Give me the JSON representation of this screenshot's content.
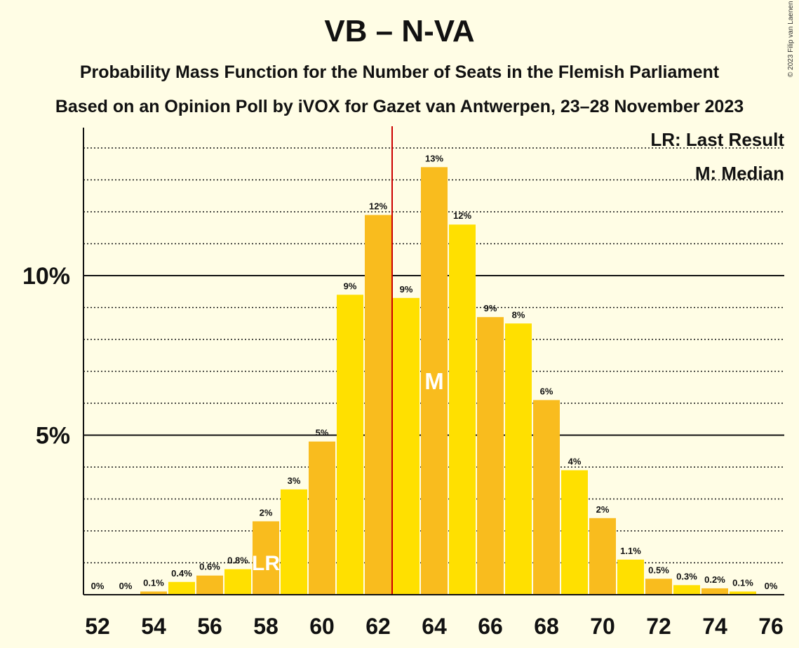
{
  "title": "VB – N-VA",
  "subtitle1": "Probability Mass Function for the Number of Seats in the Flemish Parliament",
  "subtitle2": "Based on an Opinion Poll by iVOX for Gazet van Antwerpen, 23–28 November 2023",
  "copyright": "© 2023 Filip van Laenen",
  "legend": {
    "last_result": "LR: Last Result",
    "median": "M: Median"
  },
  "colors": {
    "background": "#FFFDE5",
    "bar_a": "#FFE000",
    "bar_b": "#F9BC1E",
    "marker_line": "#CC0000",
    "axis": "#111111"
  },
  "chart_data": {
    "type": "bar",
    "categories": [
      52,
      53,
      54,
      55,
      56,
      57,
      58,
      59,
      60,
      61,
      62,
      63,
      64,
      65,
      66,
      67,
      68,
      69,
      70,
      71,
      72,
      73,
      74,
      75,
      76
    ],
    "values": [
      0,
      0,
      0.1,
      0.4,
      0.6,
      0.8,
      2.3,
      3.3,
      4.8,
      9.4,
      11.9,
      9.3,
      13.4,
      11.6,
      8.7,
      8.5,
      6.1,
      3.9,
      2.4,
      1.1,
      0.5,
      0.3,
      0.2,
      0.1,
      0
    ],
    "data_labels": [
      "0%",
      "0%",
      "0.1%",
      "0.4%",
      "0.6%",
      "0.8%",
      "2%",
      "3%",
      "5%",
      "9%",
      "12%",
      "9%",
      "13%",
      "12%",
      "9%",
      "8%",
      "6%",
      "4%",
      "2%",
      "1.1%",
      "0.5%",
      "0.3%",
      "0.2%",
      "0.1%",
      "0%"
    ],
    "x_tick_labels": [
      "52",
      "54",
      "56",
      "58",
      "60",
      "62",
      "64",
      "66",
      "68",
      "70",
      "72",
      "74",
      "76"
    ],
    "y_tick_labels": [
      {
        "value": 5,
        "label": "5%"
      },
      {
        "value": 10,
        "label": "10%"
      }
    ],
    "ylim": [
      0,
      14.6
    ],
    "minor_grid_step": 1,
    "major_grid": [
      5,
      10
    ],
    "last_result": {
      "seats": 58,
      "label": "LR"
    },
    "median": {
      "seats": 64,
      "label": "M"
    },
    "majority_line_between": [
      62,
      63
    ],
    "grid": true,
    "legend_position": "top-right"
  }
}
